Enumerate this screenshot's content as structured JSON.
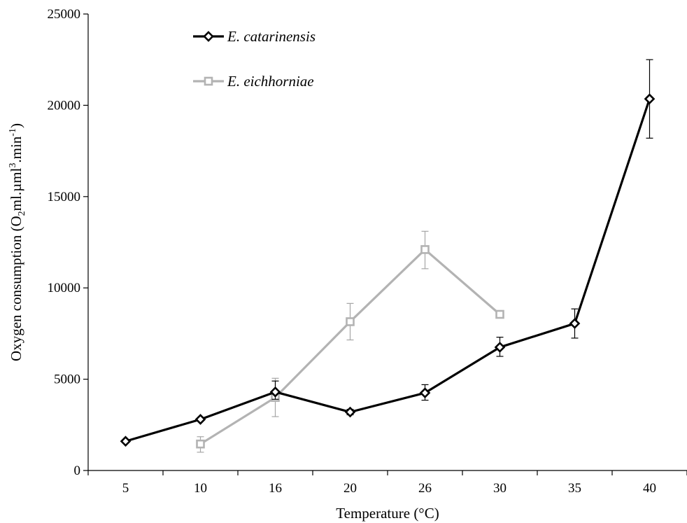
{
  "chart_data": {
    "type": "line",
    "categories": [
      "5",
      "10",
      "16",
      "20",
      "26",
      "30",
      "35",
      "40"
    ],
    "xlabel": "Temperature (°C)",
    "ylabel": {
      "main": "Oxygen consumption (O",
      "sub1": "2",
      "mid": "ml.µml",
      "sup1": "3",
      "mid2": ".min",
      "sup2": "-1",
      "end": ")"
    },
    "ylim": [
      0,
      25000
    ],
    "yticks": [
      0,
      5000,
      10000,
      15000,
      20000,
      25000
    ],
    "grid": false,
    "legend_position": "top-left",
    "series": [
      {
        "name": "E. catarinensis",
        "color": "#000000",
        "marker": "diamond",
        "values": [
          1600,
          2800,
          4300,
          3200,
          4250,
          6750,
          8050,
          20350
        ],
        "error_low": [
          null,
          null,
          3900,
          3050,
          3850,
          6250,
          7250,
          18200
        ],
        "error_high": [
          null,
          null,
          4900,
          3350,
          4700,
          7300,
          8850,
          22500
        ]
      },
      {
        "name": "E. eichhorniae",
        "color": "#b3b3b3",
        "marker": "square",
        "values": [
          null,
          1450,
          4000,
          8150,
          12100,
          8550,
          null,
          null
        ],
        "error_low": [
          null,
          1000,
          2950,
          7150,
          11050,
          null,
          null,
          null
        ],
        "error_high": [
          null,
          1850,
          5050,
          9150,
          13100,
          null,
          null,
          null
        ]
      }
    ]
  }
}
